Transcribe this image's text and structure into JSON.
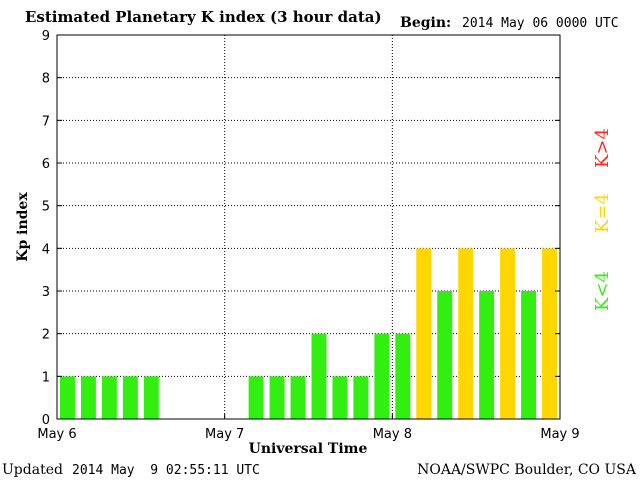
{
  "header": {
    "title": "Estimated Planetary K index (3 hour data)",
    "begin_label": "Begin:",
    "begin_value": "2014 May 06 0000 UTC"
  },
  "footer": {
    "updated_label": "Updated",
    "updated_value": "2014 May  9 02:55:11 UTC",
    "source": "NOAA/SWPC Boulder, CO USA"
  },
  "legend": {
    "high": {
      "label": "K>4",
      "color": "#ff2a1a"
    },
    "mid": {
      "label": "K=4",
      "color": "#ffd700"
    },
    "low": {
      "label": "K<4",
      "color": "#33ee11"
    }
  },
  "chart_data": {
    "type": "bar",
    "xlabel": "Universal Time",
    "ylabel": "Kp index",
    "ylim": [
      0,
      9
    ],
    "yticks": [
      0,
      1,
      2,
      3,
      4,
      5,
      6,
      7,
      8,
      9
    ],
    "xticks": [
      "May 6",
      "May 7",
      "May 8",
      "May 9"
    ],
    "interval_hours": 3,
    "intervals_total": 24,
    "grid": "dotted",
    "bars": [
      {
        "interval": 0,
        "value": 1,
        "color": "#33ee11"
      },
      {
        "interval": 1,
        "value": 1,
        "color": "#33ee11"
      },
      {
        "interval": 2,
        "value": 1,
        "color": "#33ee11"
      },
      {
        "interval": 3,
        "value": 1,
        "color": "#33ee11"
      },
      {
        "interval": 4,
        "value": 1,
        "color": "#33ee11"
      },
      {
        "interval": 9,
        "value": 1,
        "color": "#33ee11"
      },
      {
        "interval": 10,
        "value": 1,
        "color": "#33ee11"
      },
      {
        "interval": 11,
        "value": 1,
        "color": "#33ee11"
      },
      {
        "interval": 12,
        "value": 2,
        "color": "#33ee11"
      },
      {
        "interval": 13,
        "value": 1,
        "color": "#33ee11"
      },
      {
        "interval": 14,
        "value": 1,
        "color": "#33ee11"
      },
      {
        "interval": 15,
        "value": 2,
        "color": "#33ee11"
      },
      {
        "interval": 16,
        "value": 2,
        "color": "#33ee11"
      },
      {
        "interval": 17,
        "value": 4,
        "color": "#ffd700"
      },
      {
        "interval": 18,
        "value": 3,
        "color": "#33ee11"
      },
      {
        "interval": 19,
        "value": 4,
        "color": "#ffd700"
      },
      {
        "interval": 20,
        "value": 3,
        "color": "#33ee11"
      },
      {
        "interval": 21,
        "value": 4,
        "color": "#ffd700"
      },
      {
        "interval": 22,
        "value": 3,
        "color": "#33ee11"
      },
      {
        "interval": 23,
        "value": 4,
        "color": "#ffd700"
      }
    ]
  }
}
